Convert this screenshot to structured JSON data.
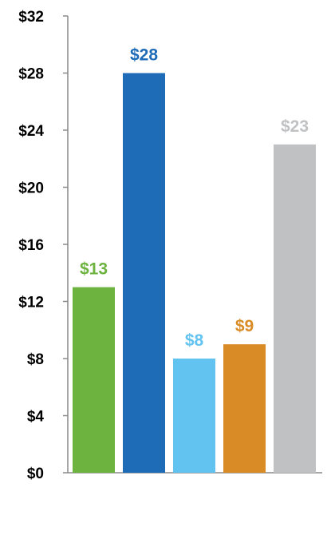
{
  "chart_data": {
    "type": "bar",
    "title": "",
    "xlabel": "",
    "ylabel": "",
    "ylim": [
      0,
      32
    ],
    "y_ticks": [
      0,
      4,
      8,
      12,
      16,
      20,
      24,
      28,
      32
    ],
    "y_tick_labels": [
      "$0",
      "$4",
      "$8",
      "$12",
      "$16",
      "$20",
      "$24",
      "$28",
      "$32"
    ],
    "categories": [
      "",
      "",
      "",
      "",
      ""
    ],
    "values": [
      13,
      28,
      8,
      9,
      23
    ],
    "data_labels": [
      "$13",
      "$28",
      "$8",
      "$9",
      "$23"
    ],
    "colors": [
      "#6cb33f",
      "#1e6bb8",
      "#63c3f0",
      "#d98b26",
      "#c0c1c3"
    ],
    "grid": false,
    "legend": "none"
  }
}
